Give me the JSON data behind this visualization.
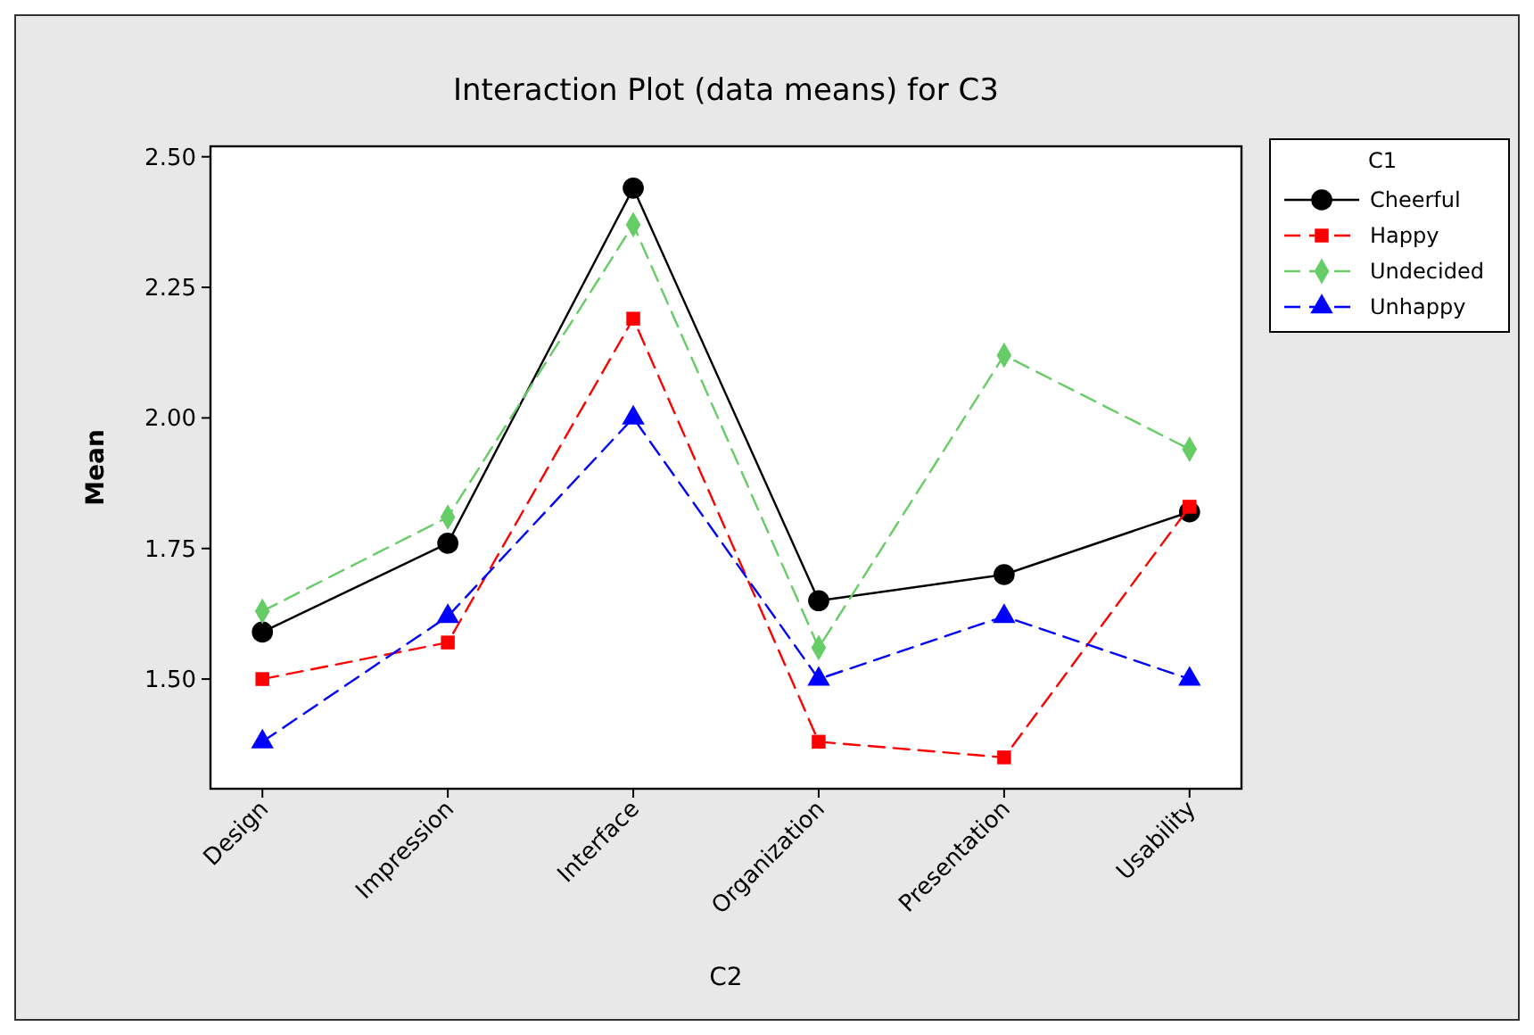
{
  "chart_data": {
    "type": "line",
    "title": "Interaction Plot (data means) for C3",
    "xlabel": "C2",
    "ylabel": "Mean",
    "legend_title": "C1",
    "legend": "right",
    "categories": [
      "Design",
      "Impression",
      "Interface",
      "Organization",
      "Presentation",
      "Usability"
    ],
    "ylim": [
      1.29,
      2.52
    ],
    "yticks": [
      {
        "value": 1.5,
        "label": "1.50"
      },
      {
        "value": 1.75,
        "label": "1.75"
      },
      {
        "value": 2,
        "label": "2.00"
      },
      {
        "value": 2.25,
        "label": "2.25"
      },
      {
        "value": 2.5,
        "label": "2.50"
      }
    ],
    "grid": false,
    "series": [
      {
        "name": "Cheerful",
        "color": "#000000",
        "marker": "circle",
        "line_style": "solid",
        "values": [
          1.59,
          1.76,
          2.44,
          1.65,
          1.7,
          1.82
        ]
      },
      {
        "name": "Happy",
        "color": "#ff0000",
        "marker": "square",
        "line_style": "dashed",
        "values": [
          1.5,
          1.57,
          2.19,
          1.38,
          1.35,
          1.83
        ]
      },
      {
        "name": "Undecided",
        "color": "#66cc66",
        "marker": "diamond",
        "line_style": "dashed",
        "values": [
          1.63,
          1.81,
          2.37,
          1.56,
          2.12,
          1.94
        ]
      },
      {
        "name": "Unhappy",
        "color": "#0000ff",
        "marker": "triangle",
        "line_style": "dashed",
        "values": [
          1.38,
          1.62,
          2.0,
          1.5,
          1.62,
          1.5
        ]
      }
    ]
  }
}
